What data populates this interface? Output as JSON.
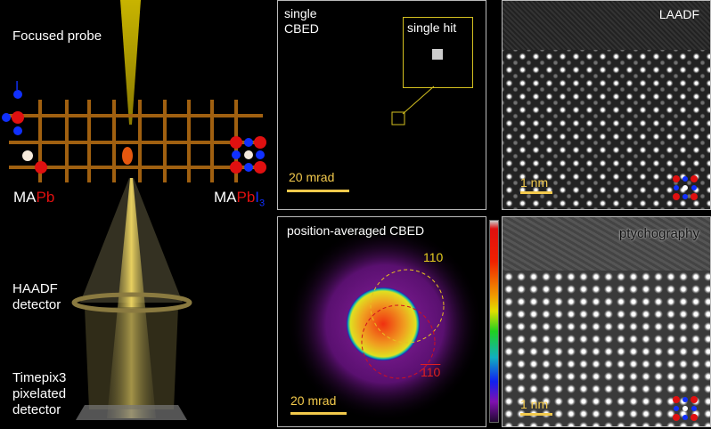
{
  "left": {
    "focused_probe": "Focused probe",
    "iodine_label": "I",
    "mapb": {
      "ma": "MA",
      "pb": "Pb"
    },
    "mapbi3": {
      "ma": "MA",
      "pb": "Pb",
      "i": "I",
      "sub": "3"
    },
    "haadf": [
      "HAADF",
      "detector"
    ],
    "timepix": [
      "Timepix3",
      "pixelated",
      "detector"
    ]
  },
  "single_cbed": {
    "title": [
      "single",
      "CBED"
    ],
    "inset_label": "single hit",
    "scale": "20 mrad"
  },
  "laadf": {
    "title": "LAADF",
    "scale": "1 nm"
  },
  "pacbed": {
    "title": "position-averaged CBED",
    "reflection_1": "110",
    "reflection_2": "110",
    "scale": "20 mrad"
  },
  "ptychography": {
    "title": "ptychography",
    "scale": "1 nm"
  },
  "colors": {
    "scalebar": "#f2c94c",
    "pb": "#e01010",
    "iodine": "#1030ff"
  }
}
